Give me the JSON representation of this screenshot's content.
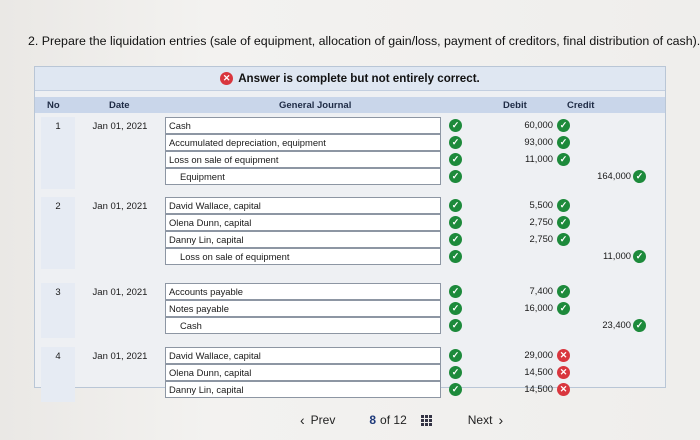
{
  "question": "2. Prepare the liquidation entries (sale of equipment, allocation of gain/loss, payment of creditors, final distribution of cash).",
  "banner": {
    "text": "Answer is complete but not entirely correct."
  },
  "headers": {
    "no": "No",
    "date": "Date",
    "journal": "General Journal",
    "debit": "Debit",
    "credit": "Credit"
  },
  "entries": [
    {
      "no": "1",
      "date": "Jan 01, 2021",
      "lines": [
        {
          "account": "Cash",
          "debit": "60,000",
          "credit": ""
        },
        {
          "account": "Accumulated depreciation, equipment",
          "debit": "93,000",
          "credit": ""
        },
        {
          "account": "Loss on sale of equipment",
          "debit": "11,000",
          "credit": ""
        },
        {
          "account": "Equipment",
          "debit": "",
          "credit": "164,000"
        }
      ]
    },
    {
      "no": "2",
      "date": "Jan 01, 2021",
      "lines": [
        {
          "account": "David Wallace, capital",
          "debit": "5,500",
          "credit": ""
        },
        {
          "account": "Olena Dunn, capital",
          "debit": "2,750",
          "credit": ""
        },
        {
          "account": "Danny Lin, capital",
          "debit": "2,750",
          "credit": ""
        },
        {
          "account": "Loss on sale of equipment",
          "debit": "",
          "credit": "11,000"
        }
      ]
    },
    {
      "no": "3",
      "date": "Jan 01, 2021",
      "lines": [
        {
          "account": "Accounts payable",
          "debit": "7,400",
          "credit": ""
        },
        {
          "account": "Notes payable",
          "debit": "16,000",
          "credit": ""
        },
        {
          "account": "Cash",
          "debit": "",
          "credit": "23,400"
        }
      ]
    },
    {
      "no": "4",
      "date": "Jan 01, 2021",
      "lines": [
        {
          "account": "David Wallace, capital",
          "debit": "29,000",
          "credit": ""
        },
        {
          "account": "Olena Dunn, capital",
          "debit": "14,500",
          "credit": ""
        },
        {
          "account": "Danny Lin, capital",
          "debit": "14,500",
          "credit": ""
        }
      ]
    }
  ],
  "footer": {
    "prev": "Prev",
    "page": "8",
    "of": "of 12",
    "next": "Next"
  },
  "colors": {
    "correct": "#1d8a3b",
    "incorrect": "#d9363e",
    "header": "#c9d6ea"
  },
  "icons": {
    "correct": "check-circle-icon",
    "incorrect": "x-circle-icon"
  }
}
